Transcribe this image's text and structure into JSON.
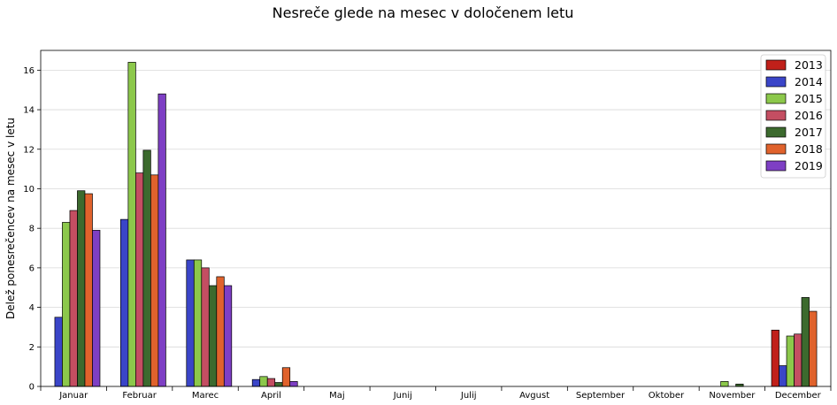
{
  "chart_data": {
    "type": "bar",
    "title": "Nesreče glede na mesec v določenem letu",
    "xlabel": "",
    "ylabel": "Delež ponesrečencev na mesec v letu",
    "ylim": [
      0,
      17
    ],
    "yticks": [
      "0",
      "2",
      "4",
      "6",
      "8",
      "10",
      "12",
      "14",
      "16"
    ],
    "grid": "horizontal",
    "legend_position": "top-right",
    "categories": [
      "Januar",
      "Februar",
      "Marec",
      "April",
      "Maj",
      "Junij",
      "Julij",
      "Avgust",
      "September",
      "Oktober",
      "November",
      "December"
    ],
    "series": [
      {
        "name": "2013",
        "color": "#c0201a",
        "values": [
          0,
          0,
          0,
          0,
          0,
          0,
          0,
          0,
          0,
          0,
          0,
          2.85
        ]
      },
      {
        "name": "2014",
        "color": "#3a45c8",
        "values": [
          3.5,
          8.45,
          6.4,
          0.35,
          0,
          0,
          0,
          0,
          0,
          0,
          0,
          1.05
        ]
      },
      {
        "name": "2015",
        "color": "#8cc84b",
        "values": [
          8.3,
          16.4,
          6.4,
          0.5,
          0,
          0,
          0,
          0,
          0,
          0,
          0.25,
          2.55
        ]
      },
      {
        "name": "2016",
        "color": "#c44e62",
        "values": [
          8.9,
          10.8,
          6.0,
          0.4,
          0,
          0,
          0,
          0,
          0,
          0,
          0,
          2.65
        ]
      },
      {
        "name": "2017",
        "color": "#3c6a2e",
        "values": [
          9.9,
          11.95,
          5.1,
          0.2,
          0,
          0,
          0,
          0,
          0,
          0,
          0.12,
          4.5
        ]
      },
      {
        "name": "2018",
        "color": "#e0622c",
        "values": [
          9.75,
          10.7,
          5.55,
          0.95,
          0,
          0,
          0,
          0,
          0,
          0,
          0,
          3.8
        ]
      },
      {
        "name": "2019",
        "color": "#7e3fc4",
        "values": [
          7.9,
          14.8,
          5.1,
          0.25,
          0,
          0,
          0,
          0,
          0,
          0,
          0,
          0
        ]
      }
    ]
  }
}
